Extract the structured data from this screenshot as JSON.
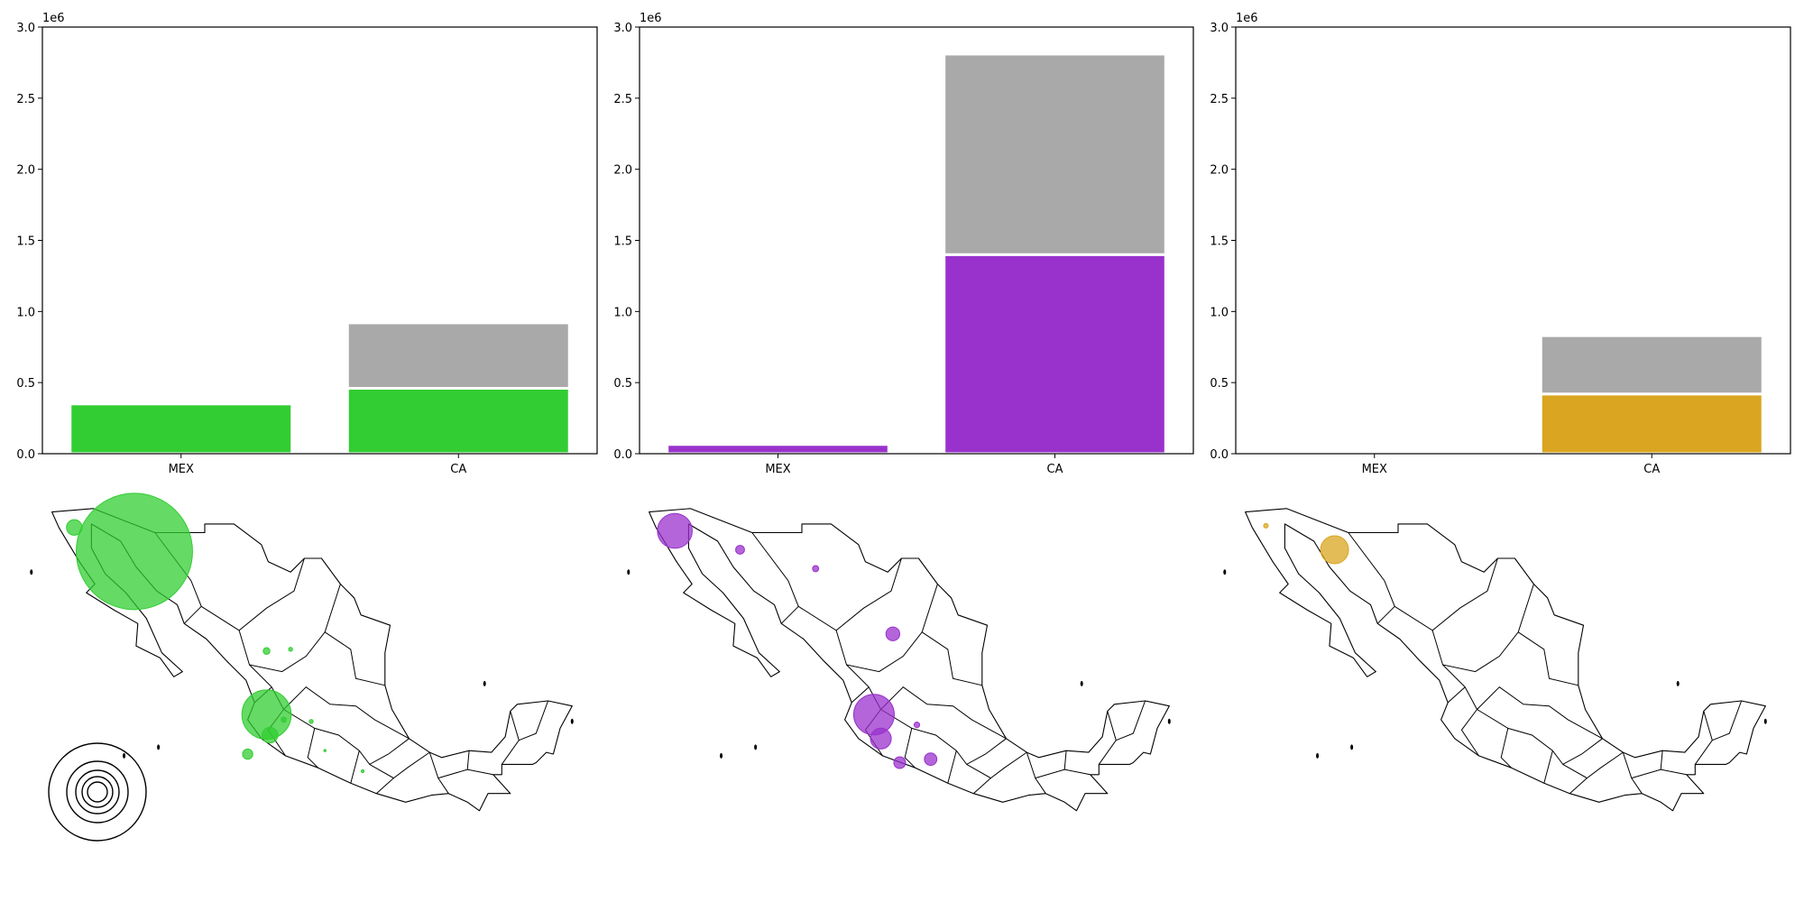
{
  "chart_data": [
    {
      "type": "bar",
      "stacked": true,
      "categories": [
        "MEX",
        "CA"
      ],
      "ylim": [
        0,
        3000000
      ],
      "yticks": [
        0,
        500000,
        1000000,
        1500000,
        2000000,
        2500000,
        3000000
      ],
      "ytick_labels": [
        "0.0",
        "0.5",
        "1.0",
        "1.5",
        "2.0",
        "2.5",
        "3.0"
      ],
      "offset_label": "1e6",
      "grid": false,
      "series": [
        {
          "color": "#32cd32",
          "values": [
            350000,
            460000
          ]
        },
        {
          "color": "#a9a9a9",
          "values": [
            0,
            460000
          ]
        }
      ]
    },
    {
      "type": "bar",
      "stacked": true,
      "categories": [
        "MEX",
        "CA"
      ],
      "ylim": [
        0,
        3000000
      ],
      "yticks": [
        0,
        500000,
        1000000,
        1500000,
        2000000,
        2500000,
        3000000
      ],
      "ytick_labels": [
        "0.0",
        "0.5",
        "1.0",
        "1.5",
        "2.0",
        "2.5",
        "3.0"
      ],
      "offset_label": "1e6",
      "grid": false,
      "series": [
        {
          "color": "#9932cc",
          "values": [
            65000,
            1400000
          ]
        },
        {
          "color": "#a9a9a9",
          "values": [
            0,
            1410000
          ]
        }
      ]
    },
    {
      "type": "bar",
      "stacked": true,
      "categories": [
        "MEX",
        "CA"
      ],
      "ylim": [
        0,
        3000000
      ],
      "yticks": [
        0,
        500000,
        1000000,
        1500000,
        2000000,
        2500000,
        3000000
      ],
      "ytick_labels": [
        "0.0",
        "0.5",
        "1.0",
        "1.5",
        "2.0",
        "2.5",
        "3.0"
      ],
      "offset_label": "1e6",
      "grid": false,
      "series": [
        {
          "color": "#daa520",
          "values": [
            0,
            420000
          ]
        },
        {
          "color": "#a9a9a9",
          "values": [
            0,
            410000
          ]
        }
      ]
    }
  ],
  "maps": [
    {
      "color": "#32cd32",
      "bubbles": [
        {
          "lon": -112.3,
          "lat": 30.2,
          "size": 780000
        },
        {
          "lon": -115.8,
          "lat": 31.6,
          "size": 14000
        },
        {
          "lon": -104.6,
          "lat": 24.4,
          "size": 2600
        },
        {
          "lon": -103.2,
          "lat": 24.5,
          "size": 900
        },
        {
          "lon": -104.6,
          "lat": 20.7,
          "size": 140000
        },
        {
          "lon": -104.4,
          "lat": 19.5,
          "size": 14000
        },
        {
          "lon": -103.6,
          "lat": 20.4,
          "size": 1500
        },
        {
          "lon": -102.0,
          "lat": 20.3,
          "size": 900
        },
        {
          "lon": -105.7,
          "lat": 18.4,
          "size": 6000
        },
        {
          "lon": -101.2,
          "lat": 18.6,
          "size": 300
        },
        {
          "lon": -99.0,
          "lat": 17.4,
          "size": 500
        }
      ]
    },
    {
      "color": "#9932cc",
      "bubbles": [
        {
          "lon": -115.6,
          "lat": 31.4,
          "size": 70000
        },
        {
          "lon": -111.8,
          "lat": 30.3,
          "size": 4500
        },
        {
          "lon": -107.4,
          "lat": 29.2,
          "size": 2200
        },
        {
          "lon": -102.9,
          "lat": 25.4,
          "size": 11000
        },
        {
          "lon": -104.0,
          "lat": 20.7,
          "size": 95000
        },
        {
          "lon": -103.6,
          "lat": 19.3,
          "size": 25000
        },
        {
          "lon": -101.5,
          "lat": 20.1,
          "size": 1800
        },
        {
          "lon": -102.5,
          "lat": 17.9,
          "size": 8000
        },
        {
          "lon": -100.7,
          "lat": 18.1,
          "size": 9000
        }
      ]
    },
    {
      "color": "#daa520",
      "bubbles": [
        {
          "lon": -115.9,
          "lat": 31.7,
          "size": 1200
        },
        {
          "lon": -111.9,
          "lat": 30.3,
          "size": 45000
        }
      ]
    }
  ],
  "legend_circles": {
    "sizes": [
      780000,
      300000,
      130000,
      60000,
      20000
    ]
  }
}
